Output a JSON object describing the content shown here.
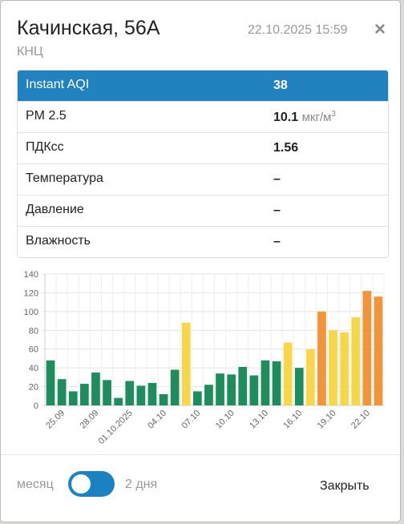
{
  "header": {
    "title": "Качинская, 56А",
    "date": "22.10.2025 15:59",
    "close": "×",
    "subtitle": "КНЦ"
  },
  "table": {
    "rows": [
      {
        "label": "Instant AQI",
        "value": "38"
      },
      {
        "label": "PM 2.5",
        "value": "10.1",
        "unit": "мкг/м",
        "unit_sup": "3"
      },
      {
        "label": "ПДКсс",
        "value": "1.56"
      },
      {
        "label": "Температура",
        "value": "–"
      },
      {
        "label": "Давление",
        "value": "–"
      },
      {
        "label": "Влажность",
        "value": "–"
      }
    ]
  },
  "chart_data": {
    "type": "bar",
    "categories": [
      null,
      "25.09",
      null,
      null,
      "28.09",
      null,
      null,
      "01.10.2025",
      null,
      null,
      "04.10",
      null,
      null,
      "07.10",
      null,
      null,
      "10.10",
      null,
      null,
      "13.10",
      null,
      null,
      "16.10",
      null,
      null,
      "19.10",
      null,
      null,
      "22.10",
      null
    ],
    "values": [
      48,
      28,
      15,
      23,
      35,
      27,
      8,
      26,
      21,
      24,
      12,
      38,
      88,
      15,
      22,
      34,
      33,
      41,
      32,
      48,
      47,
      67,
      40,
      60,
      100,
      80,
      78,
      94,
      122,
      116
    ],
    "colors": [
      "#1e8c5c",
      "#1e8c5c",
      "#1e8c5c",
      "#1e8c5c",
      "#1e8c5c",
      "#1e8c5c",
      "#1e8c5c",
      "#1e8c5c",
      "#1e8c5c",
      "#1e8c5c",
      "#1e8c5c",
      "#1e8c5c",
      "#f7d64a",
      "#1e8c5c",
      "#1e8c5c",
      "#1e8c5c",
      "#1e8c5c",
      "#1e8c5c",
      "#1e8c5c",
      "#1e8c5c",
      "#1e8c5c",
      "#f7d64a",
      "#1e8c5c",
      "#f7d64a",
      "#f0953a",
      "#f7d64a",
      "#f7d64a",
      "#f7d64a",
      "#f0953a",
      "#f0953a"
    ],
    "ylim": [
      0,
      140
    ],
    "yticks": [
      0,
      20,
      40,
      60,
      80,
      100,
      120,
      140
    ],
    "grid": true
  },
  "footer": {
    "left": "месяц",
    "right": "2 дня",
    "close": "Закрыть"
  }
}
